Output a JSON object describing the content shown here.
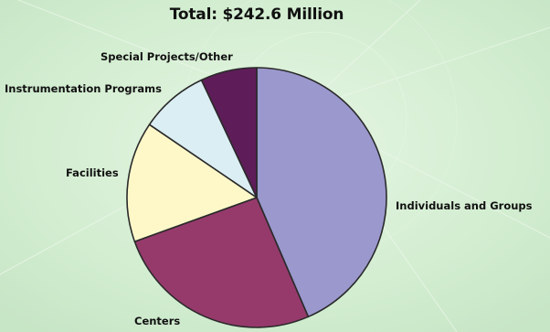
{
  "chart_data": {
    "type": "pie",
    "title": "Total: $242.6 Million",
    "unit": "share of total",
    "slices": [
      {
        "label": "Individuals and Groups",
        "value": 43.5,
        "color": "#9a98cd"
      },
      {
        "label": "Centers",
        "value": 26.0,
        "color": "#963a6c"
      },
      {
        "label": "Facilities",
        "value": 15.0,
        "color": "#fef8c9"
      },
      {
        "label": "Instrumentation Programs",
        "value": 8.5,
        "color": "#dbeef4"
      },
      {
        "label": "Special Projects/Other",
        "value": 7.0,
        "color": "#5e1d59"
      }
    ],
    "start": "12 o'clock",
    "direction": "clockwise",
    "legend": "none (labels placed beside slices)"
  }
}
